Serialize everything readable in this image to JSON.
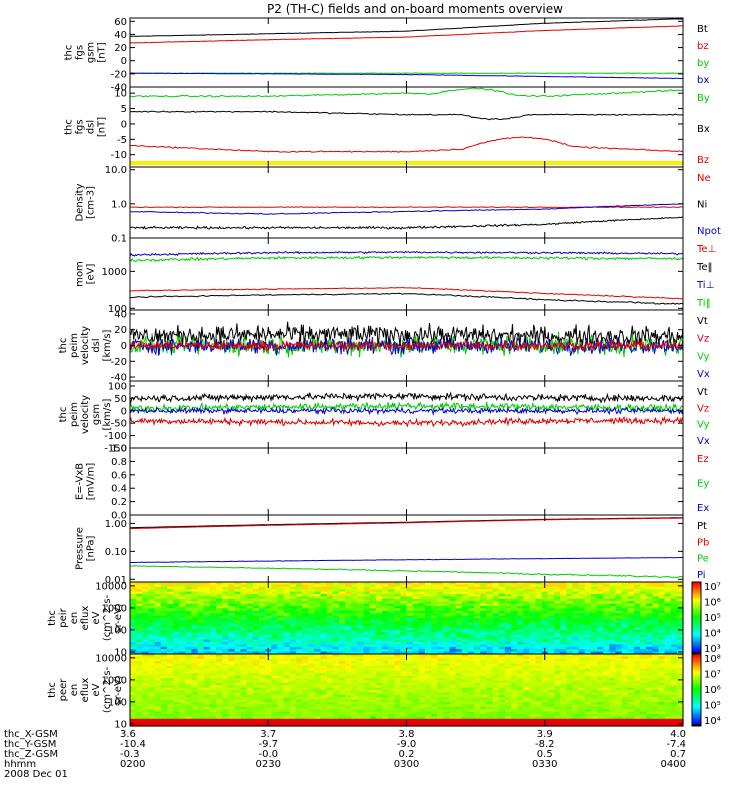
{
  "title": "P2 (TH-C) fields and on-board moments overview",
  "colors": {
    "black": "#000000",
    "red": "#e00000",
    "green": "#00cc00",
    "blue": "#0000cc",
    "yellow": "#ffee00",
    "frame": "#000000"
  },
  "panels": [
    {
      "id": "fgs-gsm",
      "ylabel": [
        "thc",
        "fgs",
        "gsm",
        "[nT]"
      ],
      "scale": "linear",
      "ylim": [
        -40,
        65
      ],
      "ticks": [
        "60",
        "40",
        "20",
        "0",
        "-20",
        "-40"
      ],
      "tick_values": [
        60,
        40,
        20,
        0,
        -20,
        -40
      ],
      "legend": [
        {
          "text": "Bt",
          "color": "#000000"
        },
        {
          "text": "bz",
          "color": "#e00000"
        },
        {
          "text": "by",
          "color": "#00cc00"
        },
        {
          "text": "bx",
          "color": "#0000cc"
        }
      ]
    },
    {
      "id": "fgs-dsl",
      "ylabel": [
        "thc",
        "fgs",
        "dsl",
        "[nT]"
      ],
      "scale": "linear",
      "ylim": [
        -14,
        12
      ],
      "ticks": [
        "10",
        "5",
        "0",
        "-5",
        "-10"
      ],
      "tick_values": [
        10,
        5,
        0,
        -5,
        -10
      ],
      "legend": [
        {
          "text": "By",
          "color": "#00cc00"
        },
        {
          "text": "Bx",
          "color": "#000000"
        },
        {
          "text": "Bz",
          "color": "#e00000"
        }
      ]
    },
    {
      "id": "density",
      "ylabel": [
        "Density",
        "[cm-3]"
      ],
      "scale": "log",
      "ylim": [
        0.1,
        12
      ],
      "ticks": [
        "10.0",
        "1.0",
        "0.1"
      ],
      "tick_values": [
        10,
        1,
        0.1
      ],
      "legend": [
        {
          "text": "Ne",
          "color": "#e00000"
        },
        {
          "text": "Ni",
          "color": "#000000"
        },
        {
          "text": "Npot",
          "color": "#0000cc"
        }
      ]
    },
    {
      "id": "temperature",
      "ylabel": [
        "mom",
        "[eV]"
      ],
      "scale": "log",
      "ylim": [
        90,
        8000
      ],
      "ticks": [
        "1000",
        "100"
      ],
      "tick_values": [
        1000,
        100
      ],
      "legend": [
        {
          "text": "Te⊥",
          "color": "#e00000"
        },
        {
          "text": "Te‖",
          "color": "#000000"
        },
        {
          "text": "Ti⊥",
          "color": "#0000cc"
        },
        {
          "text": "Ti‖",
          "color": "#00cc00"
        }
      ]
    },
    {
      "id": "ion-velocity-dsl",
      "ylabel": [
        "thc",
        "peim",
        "velocity",
        "dsl",
        "[km/s]"
      ],
      "scale": "linear",
      "ylim": [
        -45,
        45
      ],
      "ticks": [
        "40",
        "20",
        "0",
        "-20",
        "-40"
      ],
      "tick_values": [
        40,
        20,
        0,
        -20,
        -40
      ],
      "legend": [
        {
          "text": "Vt",
          "color": "#000000"
        },
        {
          "text": "Vz",
          "color": "#e00000"
        },
        {
          "text": "Vy",
          "color": "#00cc00"
        },
        {
          "text": "Vx",
          "color": "#0000cc"
        }
      ]
    },
    {
      "id": "ion-velocity-gsm",
      "ylabel": [
        "thc",
        "peim",
        "velocity",
        "gsm",
        "[km/s]"
      ],
      "scale": "linear",
      "ylim": [
        -150,
        120
      ],
      "ticks": [
        "100",
        "50",
        "0",
        "-50",
        "-100",
        "-150"
      ],
      "tick_values": [
        100,
        50,
        0,
        -50,
        -100,
        -150
      ],
      "legend": [
        {
          "text": "Vt",
          "color": "#000000"
        },
        {
          "text": "Vz",
          "color": "#e00000"
        },
        {
          "text": "Vy",
          "color": "#00cc00"
        },
        {
          "text": "Vx",
          "color": "#0000cc"
        }
      ]
    },
    {
      "id": "efield",
      "ylabel": [
        "E=-VxB",
        "[mV/m]"
      ],
      "scale": "linear",
      "ylim": [
        0,
        1
      ],
      "ticks": [
        "1.0",
        "0.8",
        "0.6",
        "0.4",
        "0.2",
        "0.0"
      ],
      "tick_values": [
        1,
        0.8,
        0.6,
        0.4,
        0.2,
        0
      ],
      "legend": [
        {
          "text": "Ez",
          "color": "#e00000"
        },
        {
          "text": "Ey",
          "color": "#00cc00"
        },
        {
          "text": "Ex",
          "color": "#0000cc"
        }
      ]
    },
    {
      "id": "pressure",
      "ylabel": [
        "Pressure",
        "[nPa]"
      ],
      "scale": "log",
      "ylim": [
        0.008,
        2
      ],
      "ticks": [
        "1.00",
        "0.10",
        "0.01"
      ],
      "tick_values": [
        1,
        0.1,
        0.01
      ],
      "legend": [
        {
          "text": "Pt",
          "color": "#000000"
        },
        {
          "text": "Pb",
          "color": "#e00000"
        },
        {
          "text": "Pe",
          "color": "#00cc00"
        },
        {
          "text": "Pi",
          "color": "#0000cc"
        }
      ]
    },
    {
      "id": "ion-spectrogram",
      "ylabel": [
        "thc",
        "peir",
        "en",
        "eflux",
        "eV",
        "(cm^2-s-",
        "sr-eV)"
      ],
      "scale": "log",
      "ylim": [
        8,
        15000
      ],
      "ticks": [
        "10000",
        "1000",
        "100",
        "10"
      ],
      "tick_values": [
        10000,
        1000,
        100,
        10
      ],
      "colorbar": [
        "10⁷",
        "10⁶",
        "10⁵",
        "10⁴",
        "10³"
      ]
    },
    {
      "id": "electron-spectrogram",
      "ylabel": [
        "thc",
        "peer",
        "en",
        "eflux",
        "eV",
        "(cm^2-s-",
        "sr-eV)"
      ],
      "scale": "log",
      "ylim": [
        8,
        15000
      ],
      "ticks": [
        "10000",
        "1000",
        "100",
        "10"
      ],
      "tick_values": [
        10000,
        1000,
        100,
        10
      ],
      "colorbar": [
        "10⁸",
        "10⁷",
        "10⁶",
        "10⁵",
        "10⁴"
      ]
    }
  ],
  "footer": {
    "rows": [
      {
        "label": "thc_X-GSM",
        "values": [
          "3.6",
          "3.7",
          "3.8",
          "3.9",
          "4.0"
        ]
      },
      {
        "label": "thc_Y-GSM",
        "values": [
          "-10.4",
          "-9.7",
          "-9.0",
          "-8.2",
          "-7.4"
        ]
      },
      {
        "label": "thc_Z-GSM",
        "values": [
          "-0.3",
          "-0.0",
          "0.2",
          "0.5",
          "0.7"
        ]
      },
      {
        "label": "hhmm",
        "values": [
          "0200",
          "0230",
          "0300",
          "0330",
          "0400"
        ]
      }
    ],
    "date": "2008 Dec 01"
  },
  "chart_data": {
    "type": "line",
    "title": "P2 (TH-C) fields and on-board moments overview",
    "x": [
      "0200",
      "0230",
      "0300",
      "0330",
      "0400"
    ],
    "series": [
      {
        "name": "Bt",
        "values": [
          37,
          41,
          45,
          57,
          64
        ]
      },
      {
        "name": "bz",
        "values": [
          27,
          32,
          36,
          46,
          53
        ]
      },
      {
        "name": "by",
        "values": [
          -19,
          -19,
          -19,
          -19,
          -19
        ]
      },
      {
        "name": "bx",
        "values": [
          -19,
          -20,
          -21,
          -24,
          -27
        ]
      },
      {
        "name": "By",
        "values": [
          9,
          9,
          10,
          9,
          11
        ]
      },
      {
        "name": "Bx",
        "values": [
          4,
          4,
          3,
          3,
          3
        ]
      },
      {
        "name": "Bz",
        "values": [
          -7,
          -9,
          -9,
          -7,
          -9
        ]
      },
      {
        "name": "Ne",
        "values": [
          0.8,
          0.8,
          0.8,
          0.8,
          0.8
        ]
      },
      {
        "name": "Npot",
        "values": [
          0.6,
          0.5,
          0.6,
          0.7,
          1.0
        ]
      },
      {
        "name": "Ni",
        "values": [
          0.2,
          0.2,
          0.2,
          0.25,
          0.4
        ]
      },
      {
        "name": "Ti⊥",
        "values": [
          2800,
          3200,
          3300,
          3200,
          3000
        ]
      },
      {
        "name": "Ti‖",
        "values": [
          2000,
          2300,
          2400,
          2300,
          2200
        ]
      },
      {
        "name": "Te⊥",
        "values": [
          300,
          330,
          360,
          250,
          180
        ]
      },
      {
        "name": "Te‖",
        "values": [
          200,
          230,
          250,
          170,
          130
        ]
      },
      {
        "name": "Pt",
        "values": [
          0.7,
          0.9,
          1.1,
          1.4,
          1.6
        ]
      },
      {
        "name": "Pb",
        "values": [
          0.65,
          0.85,
          1.05,
          1.35,
          1.55
        ]
      },
      {
        "name": "Pi",
        "values": [
          0.04,
          0.045,
          0.05,
          0.055,
          0.06
        ]
      },
      {
        "name": "Pe",
        "values": [
          0.03,
          0.025,
          0.02,
          0.015,
          0.012
        ]
      }
    ]
  }
}
